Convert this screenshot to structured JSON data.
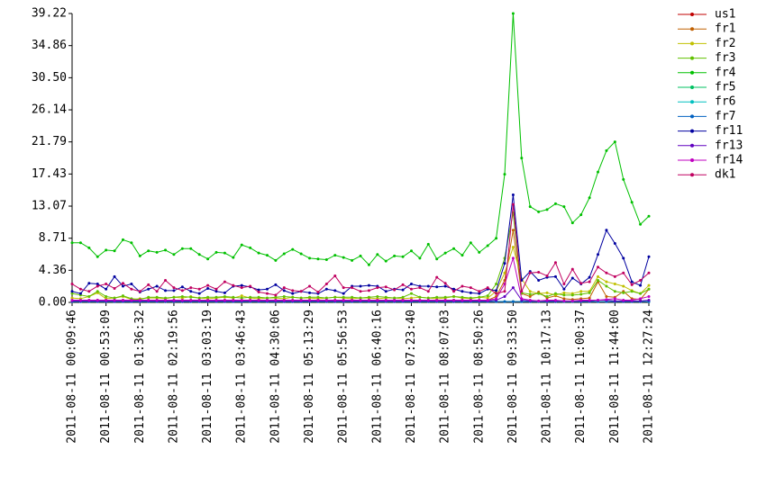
{
  "chart_data": {
    "type": "line",
    "categories": [
      "2011-08-11 00:09:46",
      null,
      null,
      null,
      "2011-08-11 00:53:09",
      null,
      null,
      null,
      "2011-08-11 01:36:32",
      null,
      null,
      null,
      "2011-08-11 02:19:56",
      null,
      null,
      null,
      "2011-08-11 03:03:19",
      null,
      null,
      null,
      "2011-08-11 03:46:43",
      null,
      null,
      null,
      "2011-08-11 04:30:06",
      null,
      null,
      null,
      "2011-08-11 05:13:29",
      null,
      null,
      null,
      "2011-08-11 05:56:53",
      null,
      null,
      null,
      "2011-08-11 06:40:16",
      null,
      null,
      null,
      "2011-08-11 07:23:40",
      null,
      null,
      null,
      "2011-08-11 08:07:03",
      null,
      null,
      null,
      "2011-08-11 08:50:26",
      null,
      null,
      null,
      "2011-08-11 09:33:50",
      null,
      null,
      null,
      "2011-08-11 10:17:13",
      null,
      null,
      null,
      "2011-08-11 11:00:37",
      null,
      null,
      null,
      "2011-08-11 11:44:00",
      null,
      null,
      null,
      "2011-08-11 12:27:24"
    ],
    "ylim": [
      0,
      39.22
    ],
    "yticks": [
      {
        "value": 0,
        "label": "0.00"
      },
      4.36,
      8.71,
      13.07,
      17.43,
      21.79,
      26.14,
      {
        "value": 30.5,
        "label": "30.50"
      },
      34.86,
      39.22
    ],
    "series": [
      {
        "name": "us1",
        "color": "#c00000",
        "values": [
          0.1,
          0.1,
          0.1,
          0.1,
          0.1,
          0.1,
          0.1,
          0.1,
          0.1,
          0.1,
          0.1,
          0.1,
          0.1,
          0.1,
          0.1,
          0.1,
          0.1,
          0.1,
          0.1,
          0.1,
          0.1,
          0.1,
          0.1,
          0.1,
          0.1,
          0.1,
          0.1,
          0.1,
          0.1,
          0.1,
          0.1,
          0.1,
          0.1,
          0.1,
          0.1,
          0.1,
          0.1,
          0.1,
          0.1,
          0.1,
          0.1,
          0.1,
          0.1,
          0.1,
          0.1,
          0.1,
          0.1,
          0.1,
          0.1,
          0.1,
          0.1,
          0.1,
          0.1,
          0.1,
          0.1,
          0.1,
          0.1,
          0.1,
          0.1,
          0.1,
          0.1,
          0.1,
          0.1,
          0.1,
          0.1,
          0.1,
          0.1,
          0.1,
          0.1
        ]
      },
      {
        "name": "fr1",
        "color": "#c06000",
        "values": [
          0.3,
          0.3,
          0.3,
          0.3,
          0.3,
          0.3,
          0.3,
          0.3,
          0.3,
          0.3,
          0.3,
          0.3,
          0.3,
          0.3,
          0.3,
          0.3,
          0.3,
          0.3,
          0.3,
          0.3,
          0.3,
          0.3,
          0.3,
          0.3,
          0.3,
          0.3,
          0.3,
          0.3,
          0.3,
          0.3,
          0.3,
          0.3,
          0.3,
          0.3,
          0.3,
          0.3,
          0.3,
          0.3,
          0.3,
          0.3,
          0.3,
          0.3,
          0.3,
          0.3,
          0.3,
          0.3,
          0.3,
          0.3,
          0.3,
          0.3,
          0.8,
          3.0,
          9.8,
          1.2,
          0.8,
          1.4,
          0.6,
          0.9,
          0.5,
          0.4,
          0.5,
          0.6,
          2.8,
          0.8,
          0.7,
          1.5,
          0.5,
          0.4,
          1.8
        ]
      },
      {
        "name": "fr2",
        "color": "#c0c000",
        "values": [
          0.6,
          0.5,
          0.8,
          1.3,
          0.5,
          0.6,
          0.8,
          0.4,
          0.5,
          0.6,
          0.6,
          0.5,
          0.7,
          0.6,
          0.8,
          0.6,
          0.5,
          0.6,
          0.7,
          0.6,
          0.9,
          0.6,
          0.5,
          0.6,
          0.6,
          0.5,
          0.7,
          0.6,
          0.6,
          0.5,
          0.6,
          0.7,
          0.6,
          0.5,
          0.6,
          0.6,
          0.5,
          0.6,
          0.6,
          0.5,
          0.6,
          0.7,
          0.6,
          0.5,
          0.6,
          0.8,
          0.6,
          0.5,
          0.7,
          0.6,
          1.5,
          4.0,
          7.5,
          3.2,
          1.5,
          1.2,
          1.3,
          1.0,
          1.3,
          1.2,
          1.5,
          1.5,
          3.5,
          2.8,
          2.5,
          2.2,
          1.6,
          1.2,
          2.3
        ]
      },
      {
        "name": "fr3",
        "color": "#60c000",
        "values": [
          1.2,
          1.0,
          0.8,
          1.5,
          0.8,
          0.6,
          0.9,
          0.5,
          0.4,
          0.7,
          0.7,
          0.6,
          0.7,
          0.8,
          0.7,
          0.6,
          0.7,
          0.7,
          0.8,
          0.7,
          0.6,
          0.7,
          0.7,
          0.6,
          0.7,
          0.8,
          0.7,
          0.6,
          0.7,
          0.7,
          0.6,
          0.7,
          0.7,
          0.7,
          0.6,
          0.7,
          0.8,
          0.7,
          0.6,
          0.7,
          1.2,
          0.7,
          0.6,
          0.7,
          0.7,
          0.8,
          0.7,
          0.6,
          0.7,
          0.9,
          2.5,
          6.0,
          12.2,
          1.3,
          1.1,
          1.2,
          0.8,
          1.2,
          1.0,
          1.0,
          1.1,
          1.3,
          3.0,
          2.2,
          1.5,
          1.3,
          1.5,
          1.2,
          1.8
        ]
      },
      {
        "name": "fr4",
        "color": "#00c000",
        "values": [
          8.1,
          8.1,
          7.4,
          6.2,
          7.1,
          7.0,
          8.5,
          8.1,
          6.3,
          7.0,
          6.8,
          7.1,
          6.5,
          7.3,
          7.3,
          6.5,
          5.9,
          6.8,
          6.7,
          6.1,
          7.8,
          7.4,
          6.7,
          6.4,
          5.7,
          6.6,
          7.2,
          6.6,
          6.0,
          5.9,
          5.8,
          6.4,
          6.1,
          5.7,
          6.3,
          5.1,
          6.5,
          5.6,
          6.3,
          6.2,
          7.0,
          6.0,
          7.9,
          5.9,
          6.7,
          7.3,
          6.4,
          8.1,
          6.8,
          7.7,
          8.7,
          17.4,
          39.22,
          19.6,
          13.0,
          12.3,
          12.6,
          13.4,
          13.0,
          10.8,
          11.9,
          14.2,
          17.7,
          20.6,
          21.8,
          16.7,
          13.6,
          10.6,
          11.7
        ]
      },
      {
        "name": "fr5",
        "color": "#00c060",
        "values": [
          0.1,
          0.1,
          0.1,
          0.1,
          0.1,
          0.1,
          0.1,
          0.1,
          0.1,
          0.1,
          0.1,
          0.1,
          0.1,
          0.1,
          0.1,
          0.1,
          0.1,
          0.1,
          0.1,
          0.1,
          0.1,
          0.1,
          0.1,
          0.1,
          0.1,
          0.1,
          0.1,
          0.1,
          0.1,
          0.1,
          0.1,
          0.1,
          0.1,
          0.1,
          0.1,
          0.1,
          0.1,
          0.1,
          0.1,
          0.1,
          0.1,
          0.1,
          0.1,
          0.1,
          0.1,
          0.1,
          0.1,
          0.1,
          0.1,
          0.1,
          0.1,
          0.1,
          0.1,
          0.1,
          0.1,
          0.1,
          0.1,
          0.1,
          0.1,
          0.1,
          0.1,
          0.1,
          0.1,
          0.1,
          0.1,
          0.1,
          0.1,
          0.1,
          0.1
        ]
      },
      {
        "name": "fr6",
        "color": "#00c0c0",
        "values": [
          0.1,
          0.1,
          0.1,
          0.1,
          0.1,
          0.1,
          0.1,
          0.1,
          0.1,
          0.1,
          0.1,
          0.1,
          0.1,
          0.1,
          0.1,
          0.1,
          0.1,
          0.1,
          0.1,
          0.1,
          0.1,
          0.1,
          0.1,
          0.1,
          0.1,
          0.1,
          0.1,
          0.1,
          0.1,
          0.1,
          0.1,
          0.1,
          0.1,
          0.1,
          0.1,
          0.1,
          0.1,
          0.1,
          0.1,
          0.1,
          0.1,
          0.1,
          0.1,
          0.1,
          0.1,
          0.1,
          0.1,
          0.1,
          0.1,
          0.1,
          0.1,
          0.1,
          0.1,
          0.1,
          0.1,
          0.1,
          0.1,
          0.1,
          0.1,
          0.1,
          0.1,
          0.1,
          0.1,
          0.1,
          0.1,
          0.1,
          0.1,
          0.1,
          0.1
        ]
      },
      {
        "name": "fr7",
        "color": "#0060c0",
        "values": [
          0.1,
          0.1,
          0.1,
          0.1,
          0.1,
          0.1,
          0.1,
          0.1,
          0.1,
          0.1,
          0.1,
          0.1,
          0.1,
          0.1,
          0.1,
          0.1,
          0.1,
          0.1,
          0.1,
          0.1,
          0.1,
          0.1,
          0.1,
          0.1,
          0.1,
          0.1,
          0.1,
          0.1,
          0.1,
          0.1,
          0.1,
          0.1,
          0.1,
          0.1,
          0.1,
          0.1,
          0.1,
          0.1,
          0.1,
          0.1,
          0.1,
          0.1,
          0.1,
          0.1,
          0.1,
          0.1,
          0.1,
          0.1,
          0.1,
          0.1,
          0.1,
          0.1,
          0.1,
          0.1,
          0.1,
          0.1,
          0.1,
          0.1,
          0.1,
          0.1,
          0.1,
          0.1,
          0.1,
          0.1,
          0.1,
          0.1,
          0.1,
          0.1,
          0.1
        ]
      },
      {
        "name": "fr11",
        "color": "#0000a0",
        "values": [
          1.5,
          1.2,
          2.6,
          2.5,
          1.8,
          3.5,
          2.2,
          2.5,
          1.4,
          1.8,
          2.2,
          1.6,
          1.6,
          2.1,
          1.5,
          1.2,
          1.9,
          1.5,
          1.3,
          2.2,
          2.3,
          2.1,
          1.7,
          1.8,
          2.4,
          1.6,
          1.2,
          1.5,
          1.3,
          1.2,
          1.8,
          1.6,
          1.2,
          2.2,
          2.2,
          2.3,
          2.2,
          1.5,
          1.8,
          1.7,
          2.5,
          2.2,
          2.2,
          2.1,
          2.2,
          1.8,
          1.5,
          1.3,
          1.2,
          1.8,
          1.6,
          5.3,
          14.6,
          3.0,
          4.2,
          3.0,
          3.4,
          3.5,
          1.8,
          3.3,
          2.5,
          3.4,
          6.5,
          9.8,
          8.0,
          6.0,
          2.8,
          2.3,
          6.2
        ]
      },
      {
        "name": "fr13",
        "color": "#6000c0",
        "values": [
          0.2,
          0.2,
          0.2,
          0.2,
          0.2,
          0.2,
          0.2,
          0.2,
          0.2,
          0.2,
          0.2,
          0.2,
          0.2,
          0.2,
          0.2,
          0.2,
          0.2,
          0.2,
          0.2,
          0.2,
          0.2,
          0.2,
          0.2,
          0.2,
          0.2,
          0.2,
          0.2,
          0.2,
          0.2,
          0.2,
          0.2,
          0.2,
          0.2,
          0.2,
          0.2,
          0.2,
          0.2,
          0.2,
          0.2,
          0.2,
          0.2,
          0.2,
          0.2,
          0.2,
          0.2,
          0.2,
          0.2,
          0.2,
          0.2,
          0.2,
          0.3,
          0.8,
          2.0,
          0.3,
          0.2,
          0.2,
          0.2,
          0.2,
          0.2,
          0.2,
          0.2,
          0.2,
          0.3,
          0.3,
          0.2,
          0.2,
          0.2,
          0.2,
          0.3
        ]
      },
      {
        "name": "fr14",
        "color": "#c000c0",
        "values": [
          0.3,
          0.3,
          0.3,
          0.3,
          0.3,
          0.3,
          0.3,
          0.3,
          0.3,
          0.3,
          0.3,
          0.3,
          0.3,
          0.3,
          0.3,
          0.3,
          0.3,
          0.3,
          0.3,
          0.3,
          0.3,
          0.3,
          0.3,
          0.3,
          0.3,
          0.3,
          0.3,
          0.3,
          0.3,
          0.3,
          0.3,
          0.3,
          0.3,
          0.3,
          0.3,
          0.3,
          0.3,
          0.3,
          0.3,
          0.3,
          0.3,
          0.3,
          0.3,
          0.3,
          0.3,
          0.3,
          0.3,
          0.3,
          0.3,
          0.3,
          0.5,
          2.5,
          6.0,
          0.5,
          0.3,
          0.2,
          0.3,
          0.3,
          0.2,
          0.2,
          0.3,
          0.3,
          0.3,
          0.4,
          0.5,
          0.3,
          0.3,
          0.5,
          0.8
        ]
      },
      {
        "name": "dk1",
        "color": "#c00060",
        "values": [
          2.5,
          1.8,
          1.5,
          2.2,
          2.5,
          1.9,
          2.6,
          1.8,
          1.5,
          2.4,
          1.5,
          3.0,
          2.0,
          1.6,
          2.0,
          1.8,
          2.3,
          1.8,
          2.8,
          2.3,
          2.0,
          2.2,
          1.4,
          1.2,
          1.0,
          2.0,
          1.6,
          1.5,
          2.2,
          1.4,
          2.5,
          3.6,
          2.0,
          2.0,
          1.5,
          1.6,
          2.0,
          2.1,
          1.7,
          2.4,
          1.8,
          2.0,
          1.5,
          3.4,
          2.6,
          1.5,
          2.2,
          2.0,
          1.5,
          2.0,
          1.2,
          1.5,
          13.3,
          1.5,
          4.0,
          4.1,
          3.6,
          5.4,
          2.5,
          4.5,
          2.6,
          2.8,
          4.8,
          4.0,
          3.5,
          4.0,
          2.4,
          3.0,
          4.0
        ]
      }
    ]
  }
}
